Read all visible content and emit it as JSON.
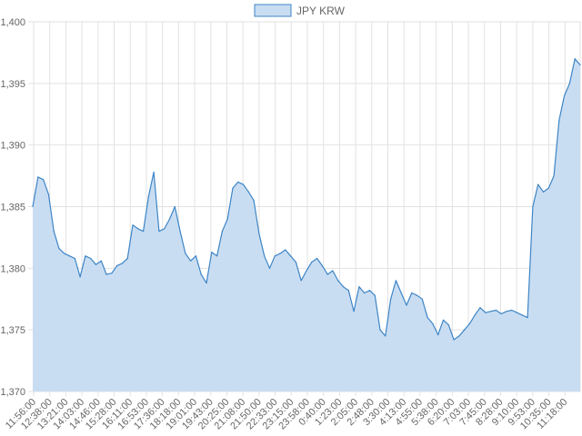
{
  "chart_data": {
    "type": "area",
    "series": [
      {
        "name": "JPY KRW",
        "color": "#3d85c6",
        "fill": "#c9ddf2",
        "values": [
          1385.0,
          1387.4,
          1387.2,
          1386.0,
          1383.0,
          1381.6,
          1381.2,
          1381.0,
          1380.8,
          1379.3,
          1381.0,
          1380.8,
          1380.3,
          1380.6,
          1379.5,
          1379.6,
          1380.2,
          1380.4,
          1380.8,
          1383.5,
          1383.2,
          1383.0,
          1385.8,
          1387.8,
          1383.0,
          1383.2,
          1384.0,
          1385.0,
          1383.0,
          1381.2,
          1380.6,
          1381.0,
          1379.5,
          1378.8,
          1381.3,
          1381.0,
          1383.0,
          1384.0,
          1386.5,
          1387.0,
          1386.8,
          1386.2,
          1385.5,
          1382.8,
          1381.0,
          1380.0,
          1381.0,
          1381.2,
          1381.5,
          1381.0,
          1380.5,
          1379.0,
          1379.8,
          1380.5,
          1380.8,
          1380.2,
          1379.5,
          1379.8,
          1379.0,
          1378.5,
          1378.2,
          1376.5,
          1378.5,
          1378.0,
          1378.2,
          1377.8,
          1375.0,
          1374.5,
          1377.5,
          1379.0,
          1378.0,
          1377.0,
          1378.0,
          1377.8,
          1377.5,
          1376.0,
          1375.5,
          1374.6,
          1375.8,
          1375.4,
          1374.2,
          1374.5,
          1375.0,
          1375.5,
          1376.2,
          1376.8,
          1376.4,
          1376.5,
          1376.6,
          1376.3,
          1376.5,
          1376.6,
          1376.4,
          1376.2,
          1376.0,
          1385.0,
          1386.8,
          1386.2,
          1386.5,
          1387.5,
          1392.0,
          1394.0,
          1395.0,
          1397.0,
          1396.5
        ]
      }
    ],
    "x_tick_labels": [
      "11:56:00",
      "12:38:00",
      "13:21:00",
      "14:03:00",
      "14:46:00",
      "15:28:00",
      "16:11:00",
      "16:53:00",
      "17:36:00",
      "18:18:00",
      "19:01:00",
      "19:43:00",
      "20:25:00",
      "21:08:00",
      "21:50:00",
      "22:33:00",
      "23:15:00",
      "23:58:00",
      "0:40:00",
      "1:23:00",
      "2:05:00",
      "2:48:00",
      "3:30:00",
      "4:13:00",
      "4:55:00",
      "5:38:00",
      "6:20:00",
      "7:03:00",
      "7:45:00",
      "8:28:00",
      "9:10:00",
      "9:53:00",
      "10:35:00",
      "11:18:00"
    ],
    "y_ticks": [
      {
        "value": 1400,
        "label": "1,400"
      },
      {
        "value": 1395,
        "label": "1,395"
      },
      {
        "value": 1390,
        "label": "1,390"
      },
      {
        "value": 1385,
        "label": "1,385"
      },
      {
        "value": 1380,
        "label": "1,380"
      },
      {
        "value": 1375,
        "label": "1,375"
      },
      {
        "value": 1370,
        "label": "1,370"
      }
    ],
    "ylim": [
      1370,
      1400
    ],
    "grid": true,
    "legend": {
      "position": "top-center",
      "label": "JPY KRW"
    },
    "title": "",
    "xlabel": "",
    "ylabel": ""
  }
}
